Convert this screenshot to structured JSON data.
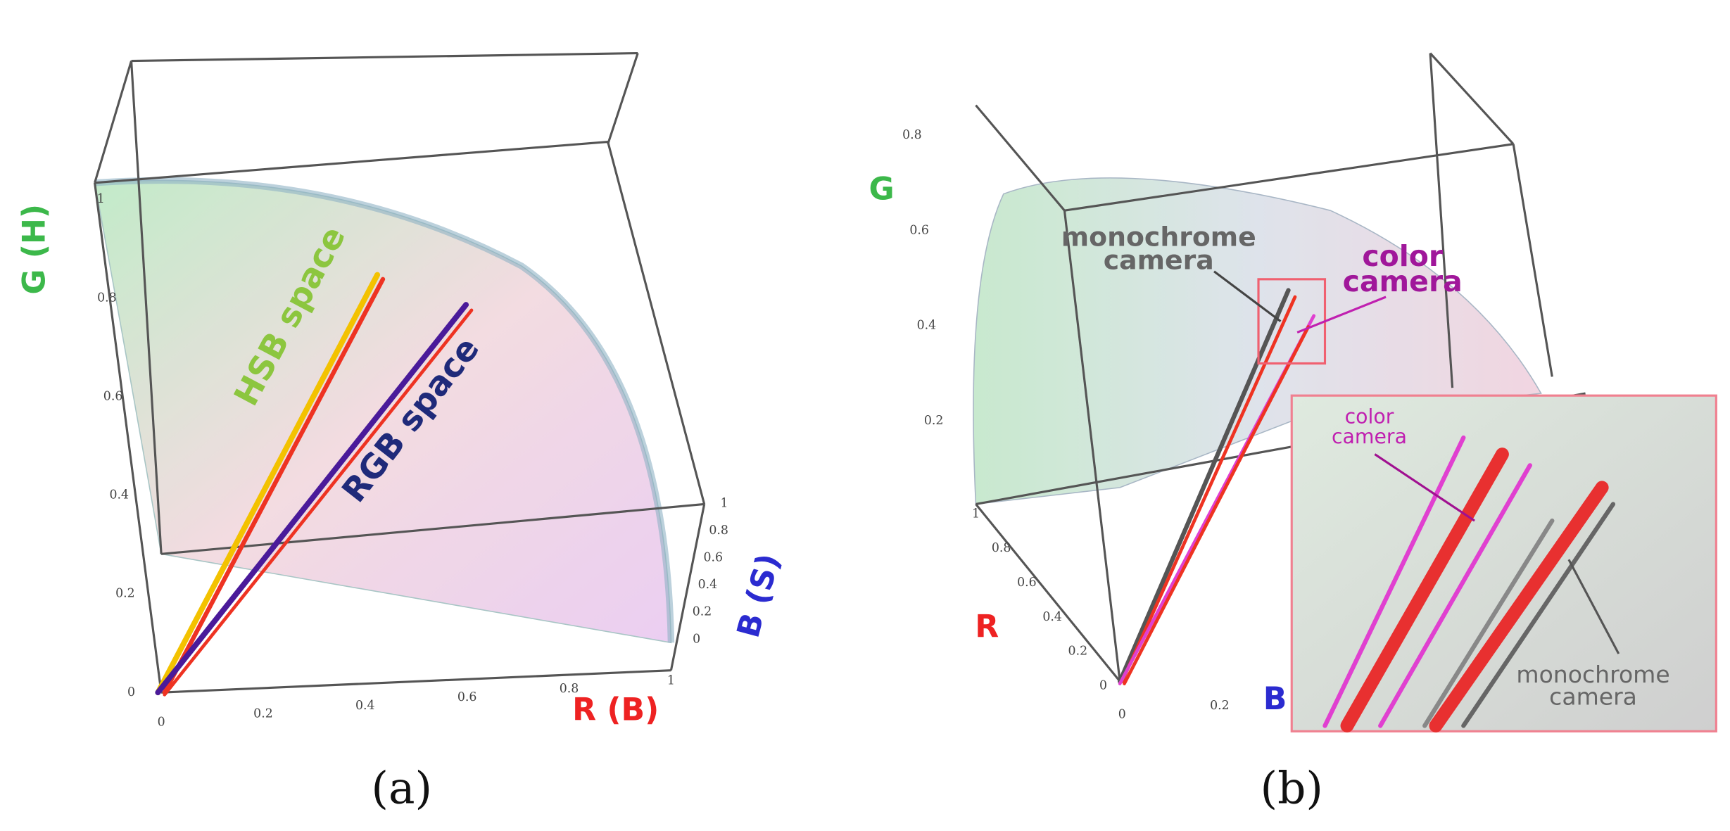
{
  "panels": [
    {
      "label": "(a)",
      "g_axis": {
        "title": "G (H)",
        "ticks": [
          0,
          0.2,
          0.4,
          0.6,
          0.8,
          1
        ]
      },
      "r_axis": {
        "title": "R (B)",
        "ticks": [
          0,
          0.2,
          0.4,
          0.6,
          0.8,
          1
        ]
      },
      "b_axis": {
        "title": "B (S)",
        "ticks": [
          0,
          0.2,
          0.4,
          0.6,
          0.8,
          1
        ]
      },
      "annotations": [
        "HSB space",
        "RGB space"
      ]
    },
    {
      "label": "(b)",
      "g_axis": {
        "title": "G",
        "ticks": [
          0.2,
          0.4,
          0.6,
          0.8
        ]
      },
      "r_axis": {
        "title": "R",
        "ticks": [
          0,
          0.2,
          0.4,
          0.6,
          0.8,
          1
        ]
      },
      "b_axis": {
        "title": "B",
        "ticks": [
          0,
          0.2
        ]
      },
      "annotations": {
        "monochrome": [
          "monochrome",
          "camera"
        ],
        "color": [
          "color",
          "camera"
        ],
        "inset_color": [
          "color",
          "camera"
        ],
        "inset_monochrome": [
          "monochrome",
          "camera"
        ]
      }
    }
  ]
}
